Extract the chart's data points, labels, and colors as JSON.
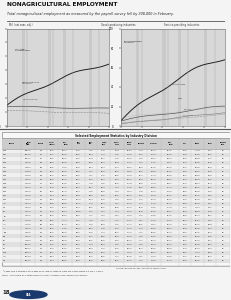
{
  "title_line1": "NONAGRICULTURAL EMPLOYMENT",
  "title_line2": "Total nonagricultural employment as measured by the payroll survey fell by 308,000 in February.",
  "background_color": "#e8e8e8",
  "chart_bg": "#d8d8d8",
  "left_chart_label_top": "Mil. (not seasonally adjusted)",
  "left_chart_col_label": "Goods-producing industries",
  "right_chart_col_label": "Service-providing industries",
  "divider_color": "#555555",
  "line_colors": [
    "#222222",
    "#444444",
    "#666666",
    "#888888",
    "#aaaaaa"
  ],
  "table_title": "Selected Employment Statistics by Industry Division",
  "table_border": "#888888",
  "table_header_bg": "#cccccc",
  "table_row_bg1": "#f0f0f0",
  "table_row_bg2": "#e0e0e0",
  "footnote_color": "#333333",
  "page_number": "18",
  "page_bg": "#f4f4f4"
}
